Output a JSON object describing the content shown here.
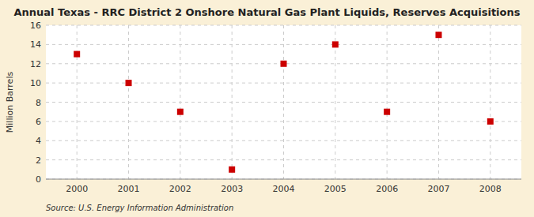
{
  "chart_data": {
    "type": "scatter",
    "title": "Annual Texas - RRC District 2 Onshore Natural Gas Plant Liquids, Reserves Acquisitions",
    "x": [
      2000,
      2001,
      2002,
      2003,
      2004,
      2005,
      2006,
      2007,
      2008
    ],
    "values": [
      13,
      10,
      7,
      1,
      12,
      14,
      7,
      15,
      6
    ],
    "ylabel": "Million Barrels",
    "source": "Source: U.S. Energy Information Administration",
    "xlim": [
      1999.4,
      2008.6
    ],
    "xticks": [
      2000,
      2001,
      2002,
      2003,
      2004,
      2005,
      2006,
      2007,
      2008
    ],
    "ylim": [
      0,
      16
    ],
    "yticks": [
      0,
      2,
      4,
      6,
      8,
      10,
      12,
      14,
      16
    ],
    "color": "#cc0000",
    "marker": "square",
    "grid": true
  }
}
